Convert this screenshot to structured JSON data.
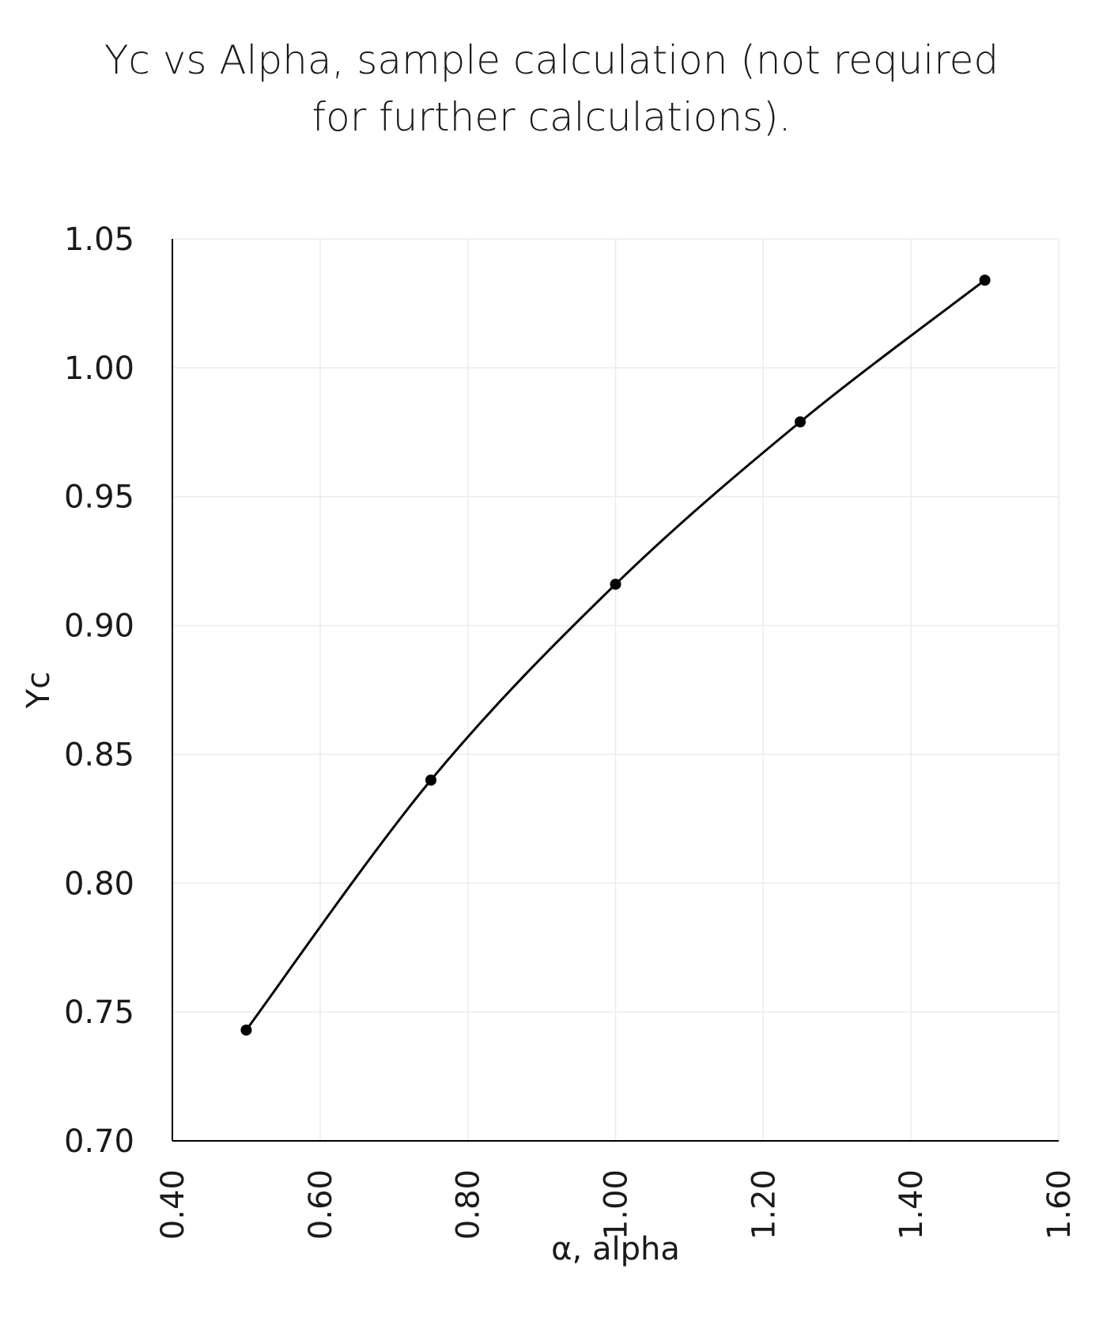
{
  "chart_data": {
    "type": "scatter",
    "title_lines": [
      "Yc vs Alpha, sample calculation (not required",
      "for further calculations)."
    ],
    "xlabel": "α, alpha",
    "ylabel": "Yc",
    "xlim": [
      0.4,
      1.6
    ],
    "ylim": [
      0.7,
      1.05
    ],
    "x_ticks": [
      "0.40",
      "0.60",
      "0.80",
      "1.00",
      "1.20",
      "1.40",
      "1.60"
    ],
    "y_ticks": [
      "0.70",
      "0.75",
      "0.80",
      "0.85",
      "0.90",
      "0.95",
      "1.00",
      "1.05"
    ],
    "grid": true,
    "smooth_line": true,
    "series": [
      {
        "x": [
          0.5,
          0.75,
          1.0,
          1.25,
          1.5
        ],
        "y": [
          0.743,
          0.84,
          0.916,
          0.979,
          1.034
        ]
      }
    ]
  }
}
